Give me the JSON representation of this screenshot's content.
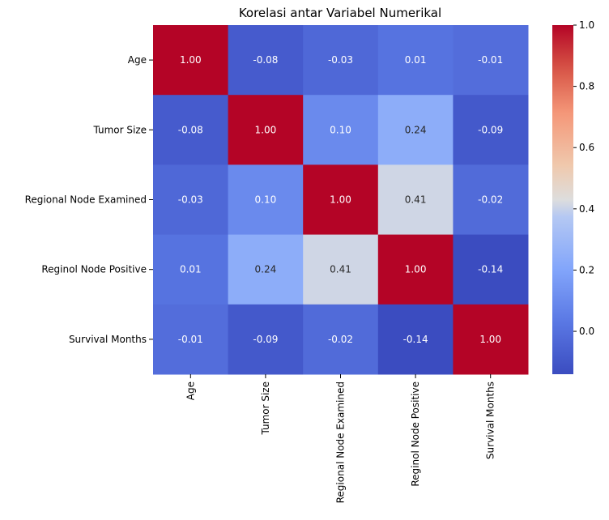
{
  "chart_data": {
    "type": "heatmap",
    "title": "Korelasi antar Variabel Numerikal",
    "row_labels": [
      "Age",
      "Tumor Size",
      "Regional Node Examined",
      "Reginol Node Positive",
      "Survival Months"
    ],
    "col_labels": [
      "Age",
      "Tumor Size",
      "Regional Node Examined",
      "Reginol Node Positive",
      "Survival Months"
    ],
    "values": [
      [
        1.0,
        -0.08,
        -0.03,
        0.01,
        -0.01
      ],
      [
        -0.08,
        1.0,
        0.1,
        0.24,
        -0.09
      ],
      [
        -0.03,
        0.1,
        1.0,
        0.41,
        -0.02
      ],
      [
        0.01,
        0.24,
        0.41,
        1.0,
        -0.14
      ],
      [
        -0.01,
        -0.09,
        -0.02,
        -0.14,
        1.0
      ]
    ],
    "value_format": "0.00",
    "colormap": "coolwarm",
    "colorbar": {
      "range": [
        -0.14,
        1.0
      ],
      "ticks": [
        0.0,
        0.2,
        0.4,
        0.6,
        0.8,
        1.0
      ],
      "tick_labels": [
        "0.0",
        "0.2",
        "0.4",
        "0.6",
        "0.8",
        "1.0"
      ]
    },
    "xlabel": "",
    "ylabel": ""
  }
}
